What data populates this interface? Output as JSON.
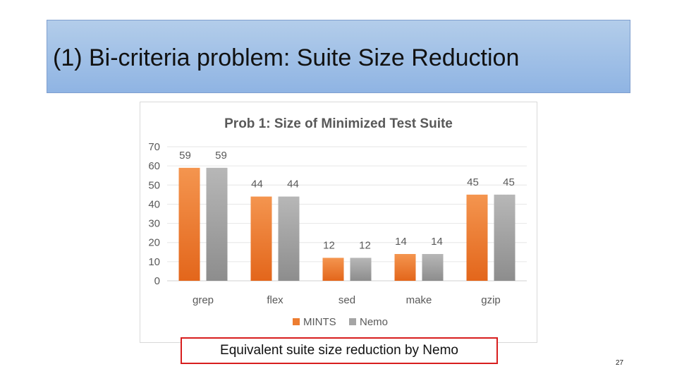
{
  "slide": {
    "title": "(1) Bi-criteria problem: Suite Size Reduction",
    "caption": "Equivalent suite size reduction by Nemo",
    "page_number": "27"
  },
  "colors": {
    "series_mints": "#ed7d31",
    "series_nemo": "#a5a5a5",
    "chart_title": "#595959",
    "caption_border": "#d81e1e"
  },
  "chart_data": {
    "type": "bar",
    "title": "Prob 1: Size of Minimized Test Suite",
    "categories": [
      "grep",
      "flex",
      "sed",
      "make",
      "gzip"
    ],
    "series": [
      {
        "name": "MINTS",
        "values": [
          59,
          44,
          12,
          14,
          45
        ]
      },
      {
        "name": "Nemo",
        "values": [
          59,
          44,
          12,
          14,
          45
        ]
      }
    ],
    "ylim": [
      0,
      70
    ],
    "yticks": [
      0,
      10,
      20,
      30,
      40,
      50,
      60,
      70
    ],
    "grid": true,
    "legend": "bottom",
    "data_labels": true
  }
}
